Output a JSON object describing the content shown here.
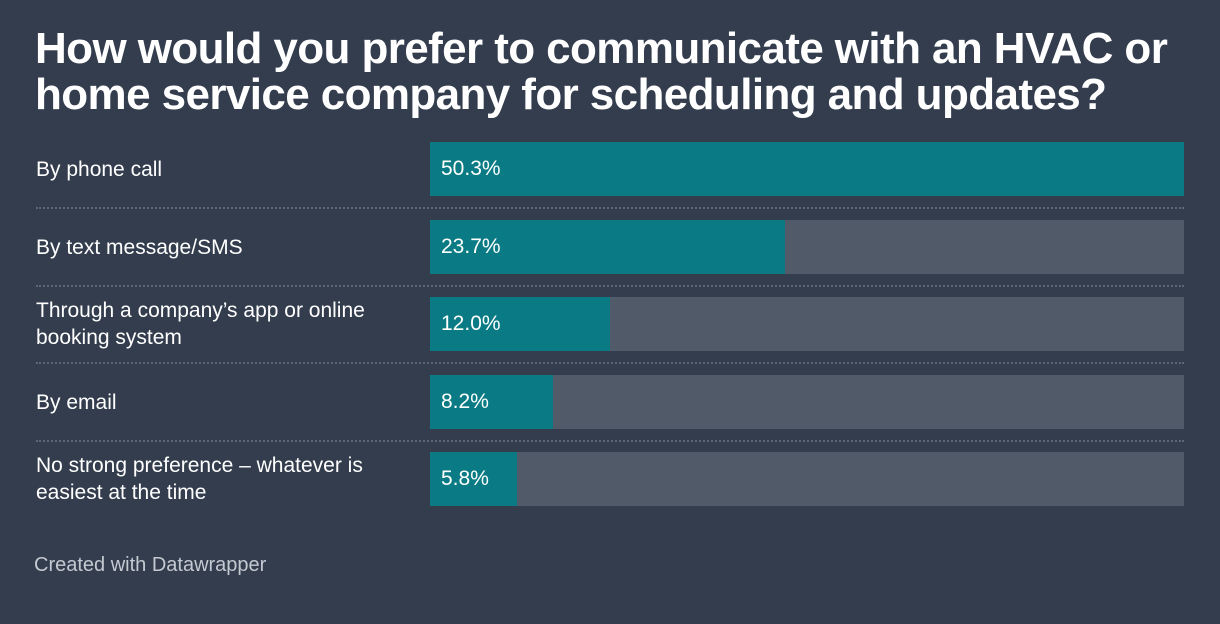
{
  "title": "How would you prefer to communicate with an HVAC or home service company for scheduling and updates?",
  "footer": "Created with Datawrapper",
  "colors": {
    "background": "#333d4d",
    "bar": "#0a7b84",
    "track": "#515a69",
    "divider": "#5c6675"
  },
  "chart_data": {
    "type": "bar",
    "orientation": "horizontal",
    "title": "How would you prefer to communicate with an HVAC or home service company for scheduling and updates?",
    "categories": [
      "By phone call",
      "By text message/SMS",
      "Through a company’s app or online booking system",
      "By email",
      "No strong preference – whatever is easiest at the time"
    ],
    "values": [
      50.3,
      23.7,
      12.0,
      8.2,
      5.8
    ],
    "value_labels": [
      "50.3%",
      "23.7%",
      "12.0%",
      "8.2%",
      "5.8%"
    ],
    "xlim": [
      0,
      50.3
    ],
    "unit": "%",
    "grid": false,
    "legend": "none"
  }
}
